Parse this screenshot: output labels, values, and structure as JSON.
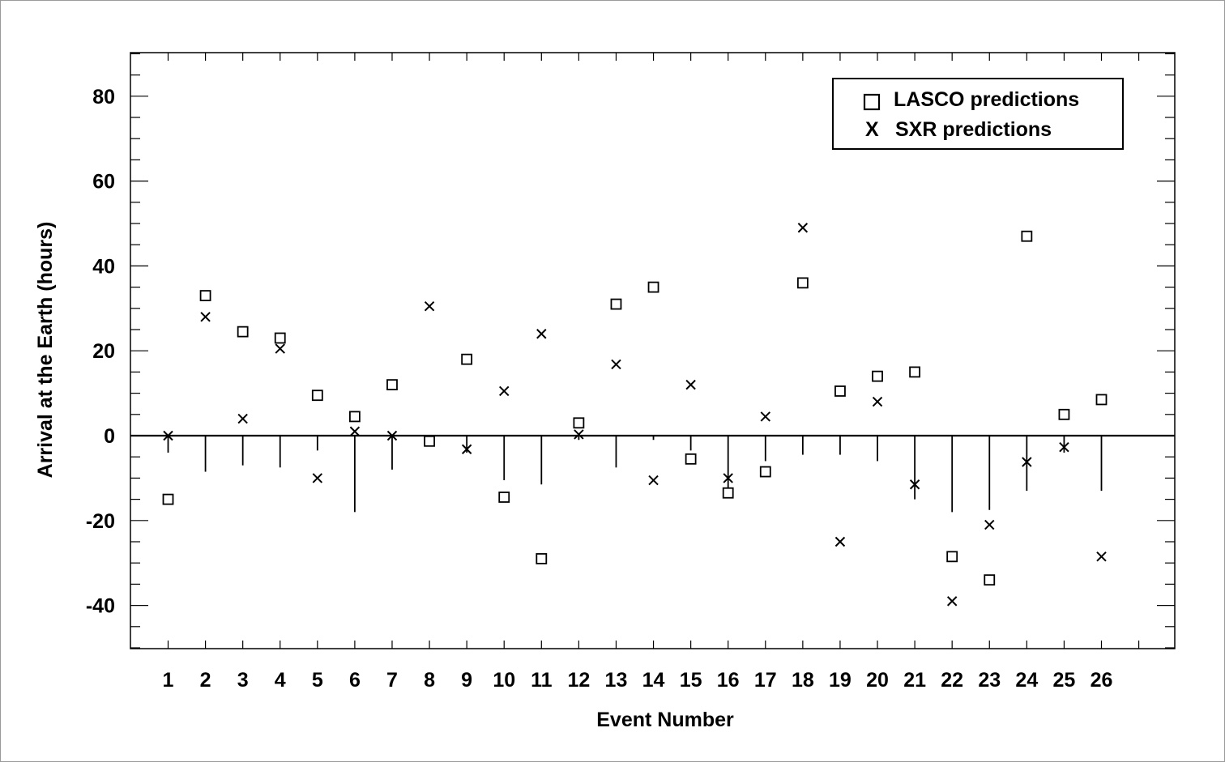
{
  "chart_data": {
    "type": "scatter",
    "title": "",
    "xlabel": "Event Number",
    "ylabel": "Arrival at the Earth (hours)",
    "xlim": [
      0,
      28
    ],
    "ylim": [
      -50,
      90
    ],
    "x_ticks": [
      1,
      2,
      3,
      4,
      5,
      6,
      7,
      8,
      9,
      10,
      11,
      12,
      13,
      14,
      15,
      16,
      17,
      18,
      19,
      20,
      21,
      22,
      23,
      24,
      25,
      26
    ],
    "y_ticks": [
      80,
      60,
      40,
      20,
      0,
      -20,
      -40
    ],
    "grid": false,
    "legend_position": "top-right",
    "series": [
      {
        "name": "LASCO predictions",
        "marker": "square",
        "x": [
          1,
          2,
          3,
          4,
          5,
          6,
          7,
          8,
          9,
          10,
          11,
          12,
          13,
          14,
          15,
          16,
          17,
          18,
          19,
          20,
          21,
          22,
          23,
          24,
          25,
          26
        ],
        "y": [
          -15,
          33,
          24.5,
          23,
          9.5,
          4.5,
          12,
          -1.3,
          18,
          -14.5,
          -29,
          3,
          31,
          35,
          -5.5,
          -13.5,
          -8.5,
          36,
          10.5,
          14,
          15,
          -28.5,
          -34,
          47,
          5,
          8.5
        ]
      },
      {
        "name": "SXR predictions",
        "marker": "x",
        "x": [
          1,
          2,
          3,
          4,
          5,
          6,
          7,
          8,
          9,
          10,
          11,
          12,
          13,
          14,
          15,
          16,
          17,
          18,
          19,
          20,
          21,
          22,
          23,
          24,
          25,
          26
        ],
        "y": [
          0,
          28,
          4,
          20.5,
          -10,
          1,
          0,
          30.5,
          -3.2,
          10.5,
          24,
          0.3,
          16.8,
          -10.5,
          12,
          -10,
          4.5,
          49,
          -25,
          8,
          -11.5,
          -39,
          -21,
          -6.2,
          -2.7,
          -28.5
        ]
      }
    ],
    "error_bars": {
      "x": [
        1,
        2,
        3,
        4,
        5,
        6,
        7,
        8,
        9,
        10,
        11,
        12,
        13,
        14,
        15,
        16,
        17,
        18,
        19,
        20,
        21,
        22,
        23,
        24,
        25,
        26
      ],
      "low": [
        -4,
        -8.5,
        -7,
        -7.5,
        -3.5,
        -18,
        -8,
        -2,
        -4,
        -10.5,
        -11.5,
        -1,
        -7.5,
        -1,
        -3.5,
        -12.5,
        -6,
        -4.5,
        -4.5,
        -6,
        -15,
        -18,
        -17.5,
        -13,
        -4,
        -13
      ],
      "high": [
        0,
        0,
        0,
        0,
        0,
        0,
        0,
        0,
        0,
        0,
        0,
        0,
        0,
        0,
        0,
        0,
        0,
        0,
        0,
        0,
        0,
        0,
        0,
        0,
        0,
        0
      ]
    }
  }
}
